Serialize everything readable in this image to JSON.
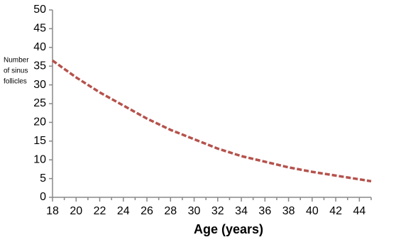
{
  "chart_data": {
    "type": "line",
    "x_label": "Age (years)",
    "y_label": [
      "Number",
      "of sinus",
      "follicles"
    ],
    "x": [
      18,
      20,
      22,
      24,
      26,
      28,
      30,
      32,
      34,
      36,
      38,
      40,
      42,
      44,
      45
    ],
    "series": [
      {
        "name": null,
        "color": "#b5524c",
        "values": [
          36.5,
          32,
          28,
          24.5,
          21,
          18,
          15.5,
          13,
          11,
          9.5,
          8,
          6.8,
          5.8,
          4.8,
          4.3
        ]
      }
    ],
    "line_style": "dashed",
    "xlim": [
      18,
      45
    ],
    "xticks": [
      18,
      20,
      22,
      24,
      26,
      28,
      30,
      32,
      34,
      36,
      38,
      40,
      42,
      44
    ],
    "xminorticks": [
      19,
      21,
      23,
      25,
      27,
      29,
      31,
      33,
      35,
      37,
      39,
      41,
      43,
      45
    ],
    "ylim": [
      0,
      50
    ],
    "yticks": [
      0,
      5,
      10,
      15,
      20,
      25,
      30,
      35,
      40,
      45,
      50
    ],
    "grid": false
  }
}
